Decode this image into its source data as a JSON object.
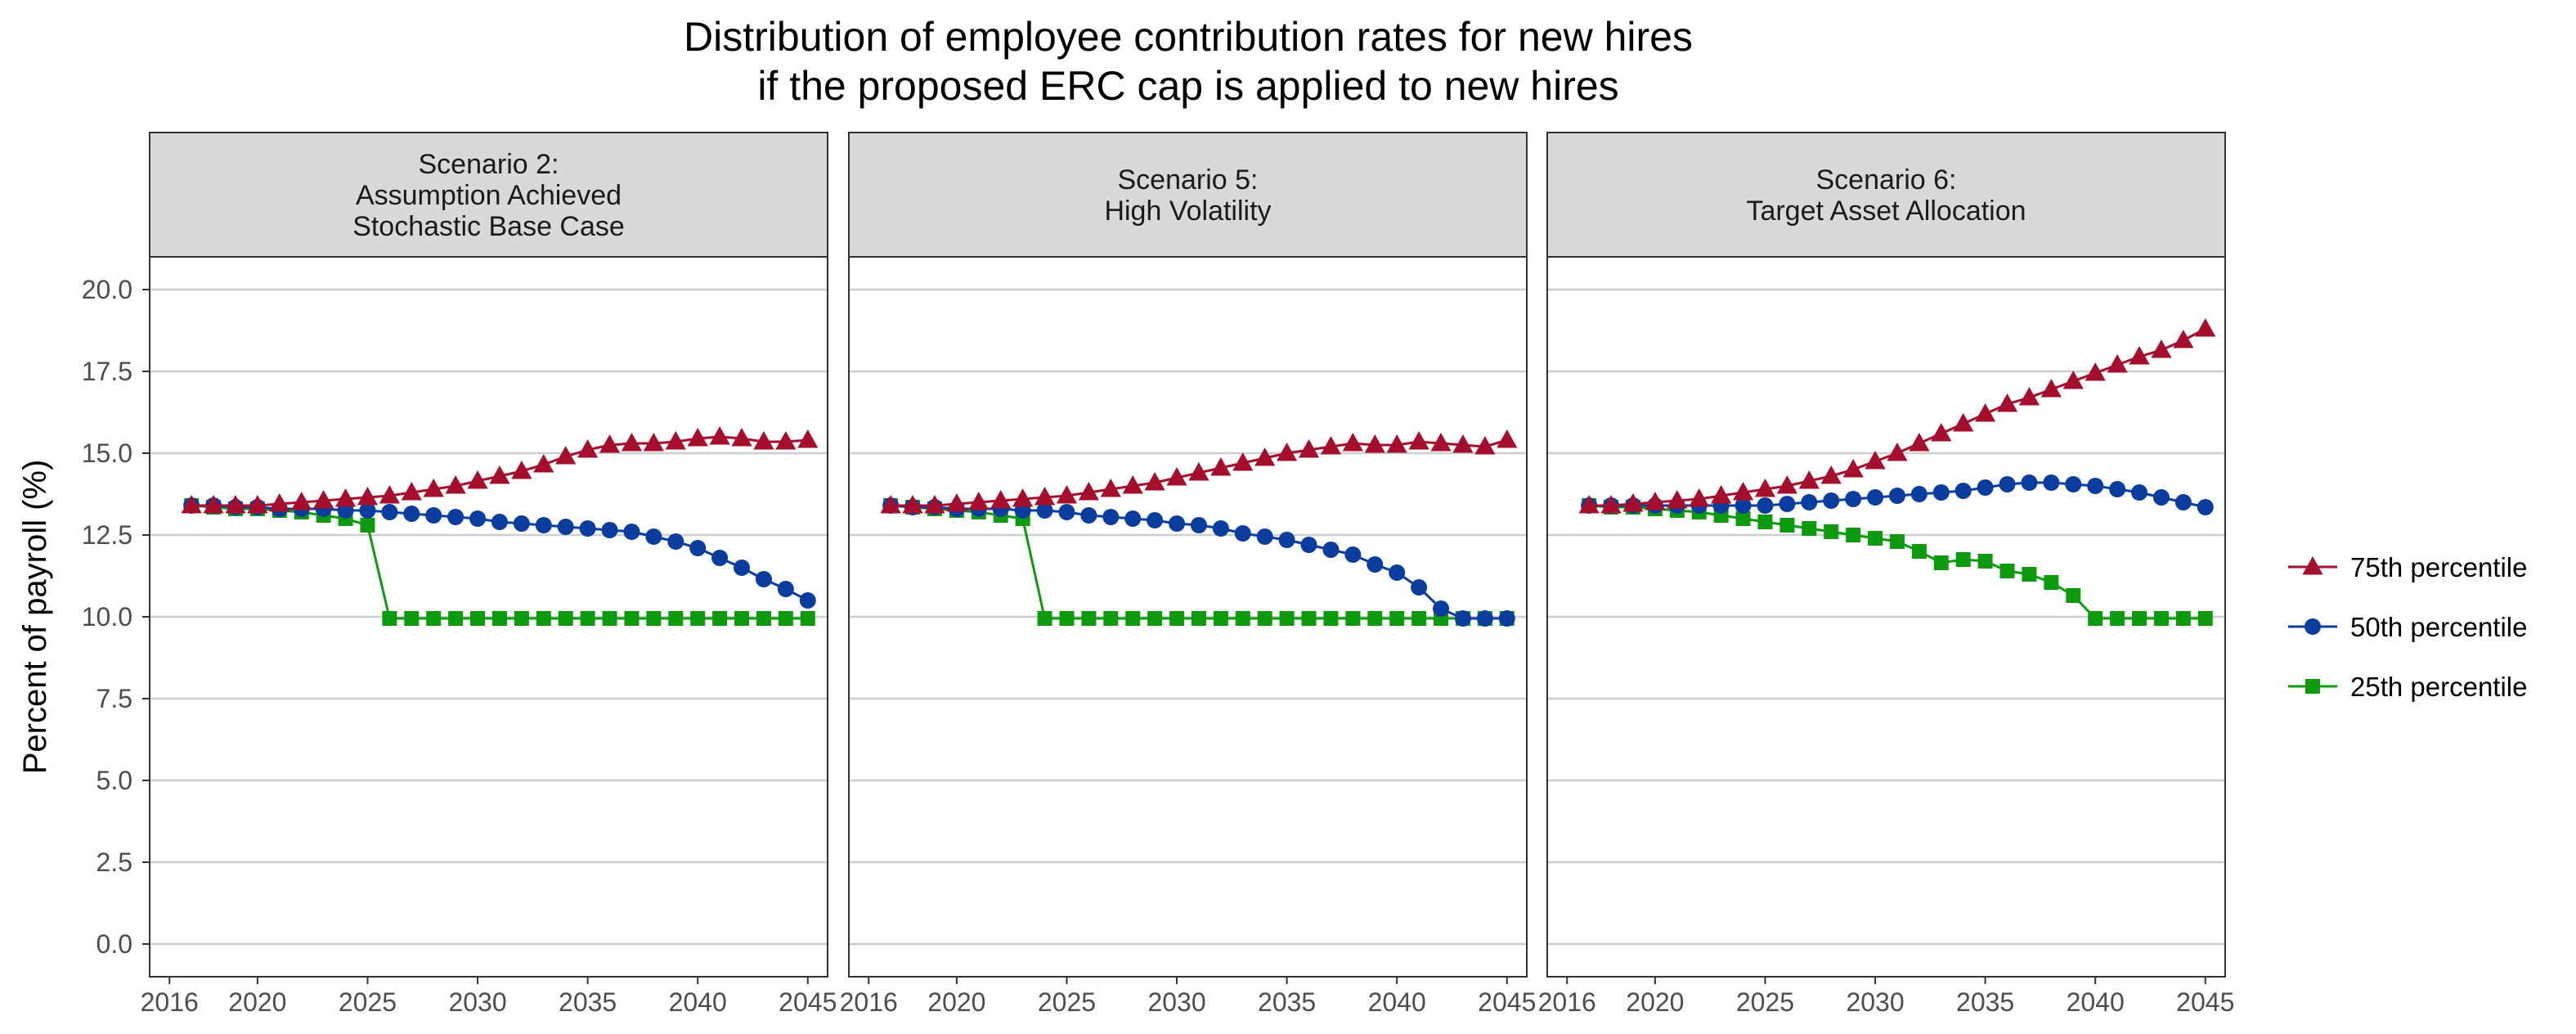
{
  "chart_data": {
    "type": "line",
    "title_lines": [
      "Distribution of employee contribution rates for new hires",
      "if the proposed ERC cap is applied to new hires"
    ],
    "ylabel": "Percent of payroll (%)",
    "xlabel": "",
    "ylim": [
      -1,
      21
    ],
    "xlim": [
      2015.1,
      2045.9
    ],
    "yticks": [
      "0.0",
      "2.5",
      "5.0",
      "7.5",
      "10.0",
      "12.5",
      "15.0",
      "17.5",
      "20.0"
    ],
    "xticks": [
      "2016",
      "2020",
      "2025",
      "2030",
      "2035",
      "2040",
      "2045"
    ],
    "grid": "horizontal",
    "legend_position": "right",
    "legend": [
      {
        "name": "75th percentile",
        "color": "#a50f2d",
        "marker": "triangle"
      },
      {
        "name": "50th percentile",
        "color": "#0a3d9e",
        "marker": "circle"
      },
      {
        "name": "25th percentile",
        "color": "#0e9a0e",
        "marker": "square"
      }
    ],
    "x": [
      2017,
      2018,
      2019,
      2020,
      2021,
      2022,
      2023,
      2024,
      2025,
      2026,
      2027,
      2028,
      2029,
      2030,
      2031,
      2032,
      2033,
      2034,
      2035,
      2036,
      2037,
      2038,
      2039,
      2040,
      2041,
      2042,
      2043,
      2044,
      2045
    ],
    "panels": [
      {
        "strip_lines": [
          "Scenario 2:",
          "Assumption Achieved",
          "Stochastic Base Case"
        ],
        "series": [
          {
            "name": "75th percentile",
            "values": [
              13.4,
              13.4,
              13.4,
              13.4,
              13.45,
              13.5,
              13.55,
              13.6,
              13.65,
              13.7,
              13.8,
              13.9,
              14.0,
              14.15,
              14.3,
              14.45,
              14.65,
              14.9,
              15.1,
              15.25,
              15.3,
              15.3,
              15.35,
              15.45,
              15.5,
              15.45,
              15.35,
              15.35,
              15.4
            ]
          },
          {
            "name": "50th percentile",
            "values": [
              13.4,
              13.4,
              13.35,
              13.35,
              13.3,
              13.3,
              13.3,
              13.25,
              13.25,
              13.2,
              13.15,
              13.1,
              13.05,
              13.0,
              12.9,
              12.85,
              12.8,
              12.75,
              12.7,
              12.65,
              12.6,
              12.45,
              12.3,
              12.1,
              11.8,
              11.5,
              11.15,
              10.85,
              10.5
            ]
          },
          {
            "name": "25th percentile",
            "values": [
              13.4,
              13.35,
              13.3,
              13.3,
              13.25,
              13.2,
              13.1,
              13.0,
              12.8,
              9.95,
              9.95,
              9.95,
              9.95,
              9.95,
              9.95,
              9.95,
              9.95,
              9.95,
              9.95,
              9.95,
              9.95,
              9.95,
              9.95,
              9.95,
              9.95,
              9.95,
              9.95,
              9.95,
              9.95
            ]
          }
        ]
      },
      {
        "strip_lines": [
          "Scenario 5:",
          "High Volatility"
        ],
        "series": [
          {
            "name": "75th percentile",
            "values": [
              13.4,
              13.4,
              13.4,
              13.45,
              13.5,
              13.55,
              13.6,
              13.65,
              13.7,
              13.8,
              13.9,
              14.0,
              14.1,
              14.25,
              14.4,
              14.55,
              14.7,
              14.85,
              15.0,
              15.1,
              15.2,
              15.3,
              15.25,
              15.25,
              15.35,
              15.3,
              15.25,
              15.2,
              15.4
            ]
          },
          {
            "name": "50th percentile",
            "values": [
              13.4,
              13.35,
              13.35,
              13.3,
              13.3,
              13.3,
              13.25,
              13.25,
              13.2,
              13.1,
              13.05,
              13.0,
              12.95,
              12.85,
              12.8,
              12.7,
              12.55,
              12.45,
              12.35,
              12.2,
              12.05,
              11.9,
              11.6,
              11.35,
              10.9,
              10.25,
              9.95,
              9.95,
              9.95
            ]
          },
          {
            "name": "25th percentile",
            "values": [
              13.4,
              13.35,
              13.3,
              13.25,
              13.2,
              13.1,
              13.0,
              9.95,
              9.95,
              9.95,
              9.95,
              9.95,
              9.95,
              9.95,
              9.95,
              9.95,
              9.95,
              9.95,
              9.95,
              9.95,
              9.95,
              9.95,
              9.95,
              9.95,
              9.95,
              9.95,
              9.95,
              9.95,
              9.95
            ]
          }
        ]
      },
      {
        "strip_lines": [
          "Scenario 6:",
          "Target Asset Allocation"
        ],
        "series": [
          {
            "name": "75th percentile",
            "values": [
              13.4,
              13.4,
              13.45,
              13.5,
              13.55,
              13.6,
              13.7,
              13.8,
              13.9,
              14.0,
              14.15,
              14.3,
              14.5,
              14.75,
              15.0,
              15.3,
              15.6,
              15.9,
              16.2,
              16.5,
              16.7,
              16.95,
              17.2,
              17.45,
              17.7,
              17.95,
              18.15,
              18.45,
              18.8
            ]
          },
          {
            "name": "50th percentile",
            "values": [
              13.4,
              13.4,
              13.4,
              13.4,
              13.4,
              13.4,
              13.4,
              13.4,
              13.4,
              13.45,
              13.5,
              13.55,
              13.6,
              13.65,
              13.7,
              13.75,
              13.8,
              13.85,
              13.95,
              14.05,
              14.1,
              14.1,
              14.05,
              14.0,
              13.9,
              13.8,
              13.65,
              13.5,
              13.35
            ]
          },
          {
            "name": "25th percentile",
            "values": [
              13.4,
              13.35,
              13.35,
              13.3,
              13.25,
              13.2,
              13.1,
              13.0,
              12.9,
              12.8,
              12.7,
              12.6,
              12.5,
              12.4,
              12.3,
              12.0,
              11.65,
              11.75,
              11.7,
              11.4,
              11.3,
              11.05,
              10.65,
              9.95,
              9.95,
              9.95,
              9.95,
              9.95,
              9.95
            ]
          }
        ]
      }
    ]
  }
}
